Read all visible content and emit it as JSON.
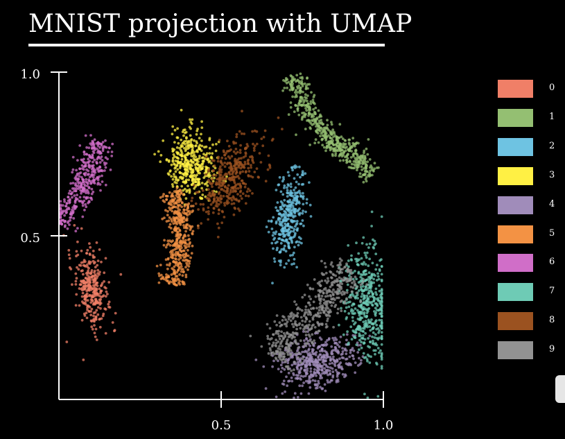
{
  "chart_data": {
    "type": "scatter",
    "title": "MNIST projection with UMAP",
    "xlabel": "",
    "ylabel": "",
    "xlim": [
      0,
      1
    ],
    "ylim": [
      0,
      1
    ],
    "x_ticks": [
      "0.5",
      "1.0"
    ],
    "y_ticks": [
      "0.5",
      "1.0"
    ],
    "grid": false,
    "legend_position": "right",
    "series": [
      {
        "name": "0",
        "color": "#f07f67",
        "cluster": {
          "center": [
            0.1,
            0.34
          ],
          "spread": [
            0.025,
            0.06
          ],
          "rotation": 0.2,
          "count": 320
        }
      },
      {
        "name": "1",
        "color": "#94bf72",
        "cluster": {
          "path": [
            [
              0.72,
              0.99
            ],
            [
              0.76,
              0.89
            ],
            [
              0.83,
              0.79
            ],
            [
              0.9,
              0.75
            ],
            [
              0.97,
              0.69
            ]
          ],
          "width": 0.018,
          "count": 520
        }
      },
      {
        "name": "2",
        "color": "#6ec3e2",
        "cluster": {
          "center": [
            0.71,
            0.56
          ],
          "spread": [
            0.025,
            0.07
          ],
          "rotation": -0.15,
          "count": 330
        }
      },
      {
        "name": "3",
        "color": "#fff044",
        "cluster": {
          "center": [
            0.41,
            0.72
          ],
          "spread": [
            0.035,
            0.05
          ],
          "rotation": 0.1,
          "count": 420
        }
      },
      {
        "name": "4",
        "color": "#a08cba",
        "cluster": {
          "center": [
            0.79,
            0.11
          ],
          "spread": [
            0.06,
            0.04
          ],
          "rotation": 0.2,
          "count": 480
        }
      },
      {
        "name": "5",
        "color": "#f39244",
        "cluster": {
          "path": [
            [
              0.35,
              0.64
            ],
            [
              0.38,
              0.55
            ],
            [
              0.37,
              0.45
            ],
            [
              0.35,
              0.35
            ]
          ],
          "width": 0.02,
          "count": 420
        }
      },
      {
        "name": "6",
        "color": "#d06ec8",
        "cluster": {
          "path": [
            [
              0.13,
              0.79
            ],
            [
              0.1,
              0.7
            ],
            [
              0.06,
              0.63
            ],
            [
              0.01,
              0.53
            ]
          ],
          "width": 0.022,
          "count": 380
        }
      },
      {
        "name": "7",
        "color": "#6ecbb5",
        "cluster": {
          "center": [
            0.95,
            0.29
          ],
          "spread": [
            0.035,
            0.09
          ],
          "rotation": 0.05,
          "count": 470
        }
      },
      {
        "name": "8",
        "color": "#9b5220",
        "cluster": {
          "center": [
            0.53,
            0.68
          ],
          "spread": [
            0.035,
            0.07
          ],
          "rotation": -0.5,
          "count": 390
        }
      },
      {
        "name": "9",
        "color": "#929292",
        "cluster": {
          "path": [
            [
              0.66,
              0.13
            ],
            [
              0.74,
              0.22
            ],
            [
              0.82,
              0.3
            ],
            [
              0.9,
              0.4
            ]
          ],
          "width": 0.03,
          "count": 470
        }
      }
    ]
  }
}
